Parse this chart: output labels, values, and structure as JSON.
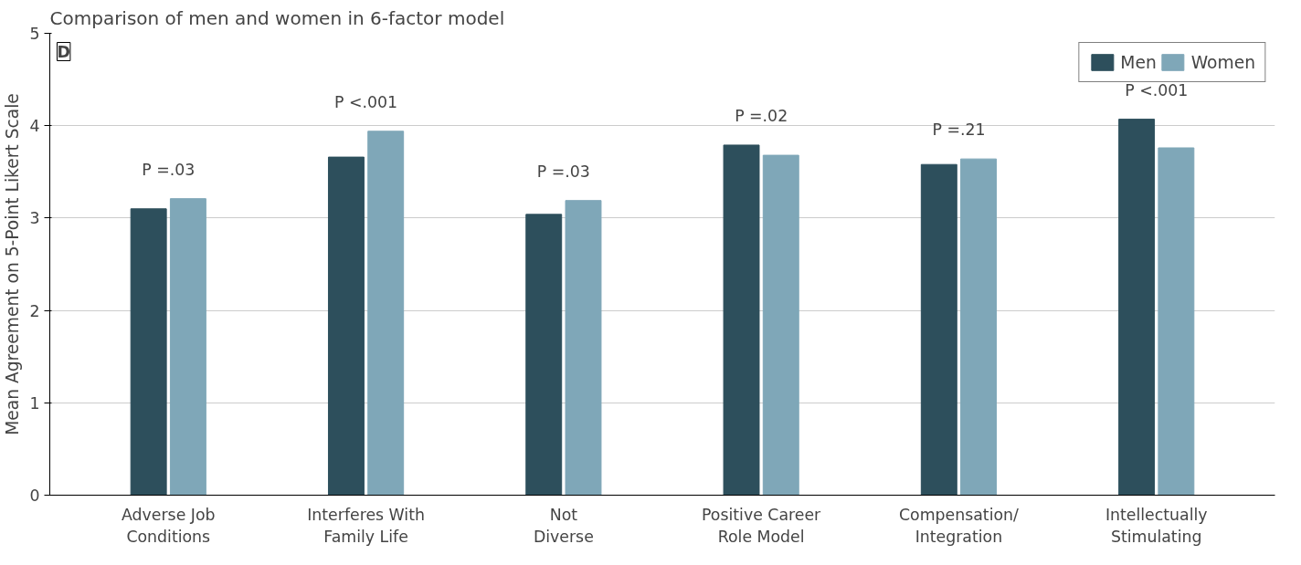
{
  "chart_data": {
    "type": "bar",
    "title": "Comparison of men and women in 6-factor model",
    "ylabel": "Mean Agreement on 5-Point Likert Scale",
    "categories": [
      "Adverse Job\nConditions",
      "Interferes With\nFamily Life",
      "Not\nDiverse",
      "Positive Career\nRole Model",
      "Compensation/\nIntegration",
      "Intellectually\nStimulating"
    ],
    "series": [
      {
        "name": "Men",
        "color": "#2d4f5c",
        "values": [
          3.1,
          3.66,
          3.04,
          3.79,
          3.58,
          4.07
        ]
      },
      {
        "name": "Women",
        "color": "#7fa7b8",
        "values": [
          3.21,
          3.94,
          3.19,
          3.68,
          3.64,
          3.76
        ]
      }
    ],
    "ylim": [
      0,
      5
    ],
    "yticks": [
      0,
      1,
      2,
      3,
      4,
      5
    ],
    "grid": "y",
    "legend": "top right",
    "annotations": [
      "D",
      "P =.03",
      "P <.001",
      "P =.03",
      "P =.02",
      "P =.21",
      "P <.001"
    ]
  }
}
